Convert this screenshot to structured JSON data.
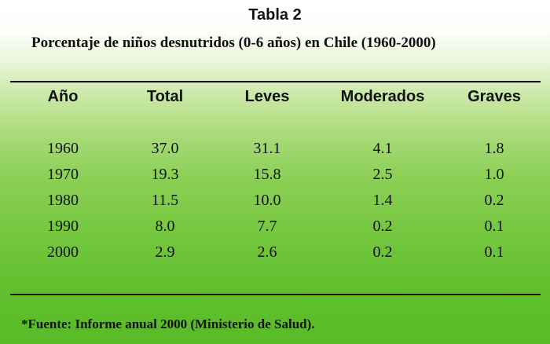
{
  "table": {
    "title": "Tabla 2",
    "subtitle": "Porcentaje de niños desnutridos (0-6 años) en Chile (1960-2000)",
    "headers": [
      "Año",
      "Total",
      "Leves",
      "Moderados",
      "Graves"
    ],
    "rows": [
      [
        "1960",
        "37.0",
        "31.1",
        "4.1",
        "1.8"
      ],
      [
        "1970",
        "19.3",
        "15.8",
        "2.5",
        "1.0"
      ],
      [
        "1980",
        "11.5",
        "10.0",
        "1.4",
        "0.2"
      ],
      [
        "1990",
        "8.0",
        "7.7",
        "0.2",
        "0.1"
      ],
      [
        "2000",
        "2.9",
        "2.6",
        "0.2",
        "0.1"
      ]
    ],
    "footnote": "*Fuente:  Informe anual 2000 (Ministerio de Salud)."
  }
}
